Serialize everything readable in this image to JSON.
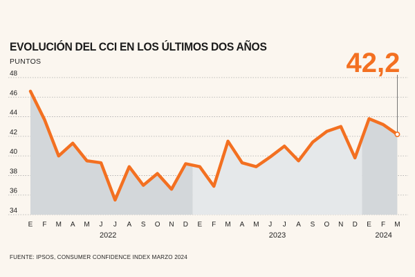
{
  "header": {
    "title": "EVOLUCIÓN DEL CCI EN LOS ÚLTIMOS DOS AÑOS",
    "subtitle": "PUNTOS"
  },
  "footer": {
    "source": "FUENTE: IPSOS, CONSUMER CONFIDENCE INDEX MARZO 2024"
  },
  "colors": {
    "line": "#f37021",
    "area_dark": "#d3d7da",
    "area_light": "#e5e8ea",
    "background": "#fbf6ef"
  },
  "chart_data": {
    "type": "line",
    "title": "EVOLUCIÓN DEL CCI EN LOS ÚLTIMOS DOS AÑOS",
    "ylabel": "PUNTOS",
    "xlabel": "",
    "ylim": [
      34,
      48
    ],
    "yticks": [
      34,
      36,
      38,
      40,
      42,
      44,
      46,
      48
    ],
    "grid": true,
    "categories": [
      "E",
      "F",
      "M",
      "A",
      "M",
      "J",
      "J",
      "A",
      "S",
      "O",
      "N",
      "D",
      "E",
      "F",
      "M",
      "A",
      "M",
      "J",
      "J",
      "A",
      "S",
      "O",
      "N",
      "D",
      "E",
      "F",
      "M"
    ],
    "years": [
      {
        "label": "2022",
        "start": 0,
        "end": 11
      },
      {
        "label": "2023",
        "start": 12,
        "end": 23
      },
      {
        "label": "2024",
        "start": 24,
        "end": 26
      }
    ],
    "series": [
      {
        "name": "CCI",
        "values": [
          46.6,
          43.7,
          40.0,
          41.3,
          39.5,
          39.3,
          35.5,
          38.9,
          37.0,
          38.2,
          36.6,
          39.2,
          38.9,
          36.9,
          41.5,
          39.3,
          38.9,
          39.9,
          41.0,
          39.5,
          41.4,
          42.5,
          43.0,
          39.8,
          43.8,
          43.2,
          42.2
        ]
      }
    ],
    "callout": {
      "label": "42,2",
      "index": 26
    }
  }
}
